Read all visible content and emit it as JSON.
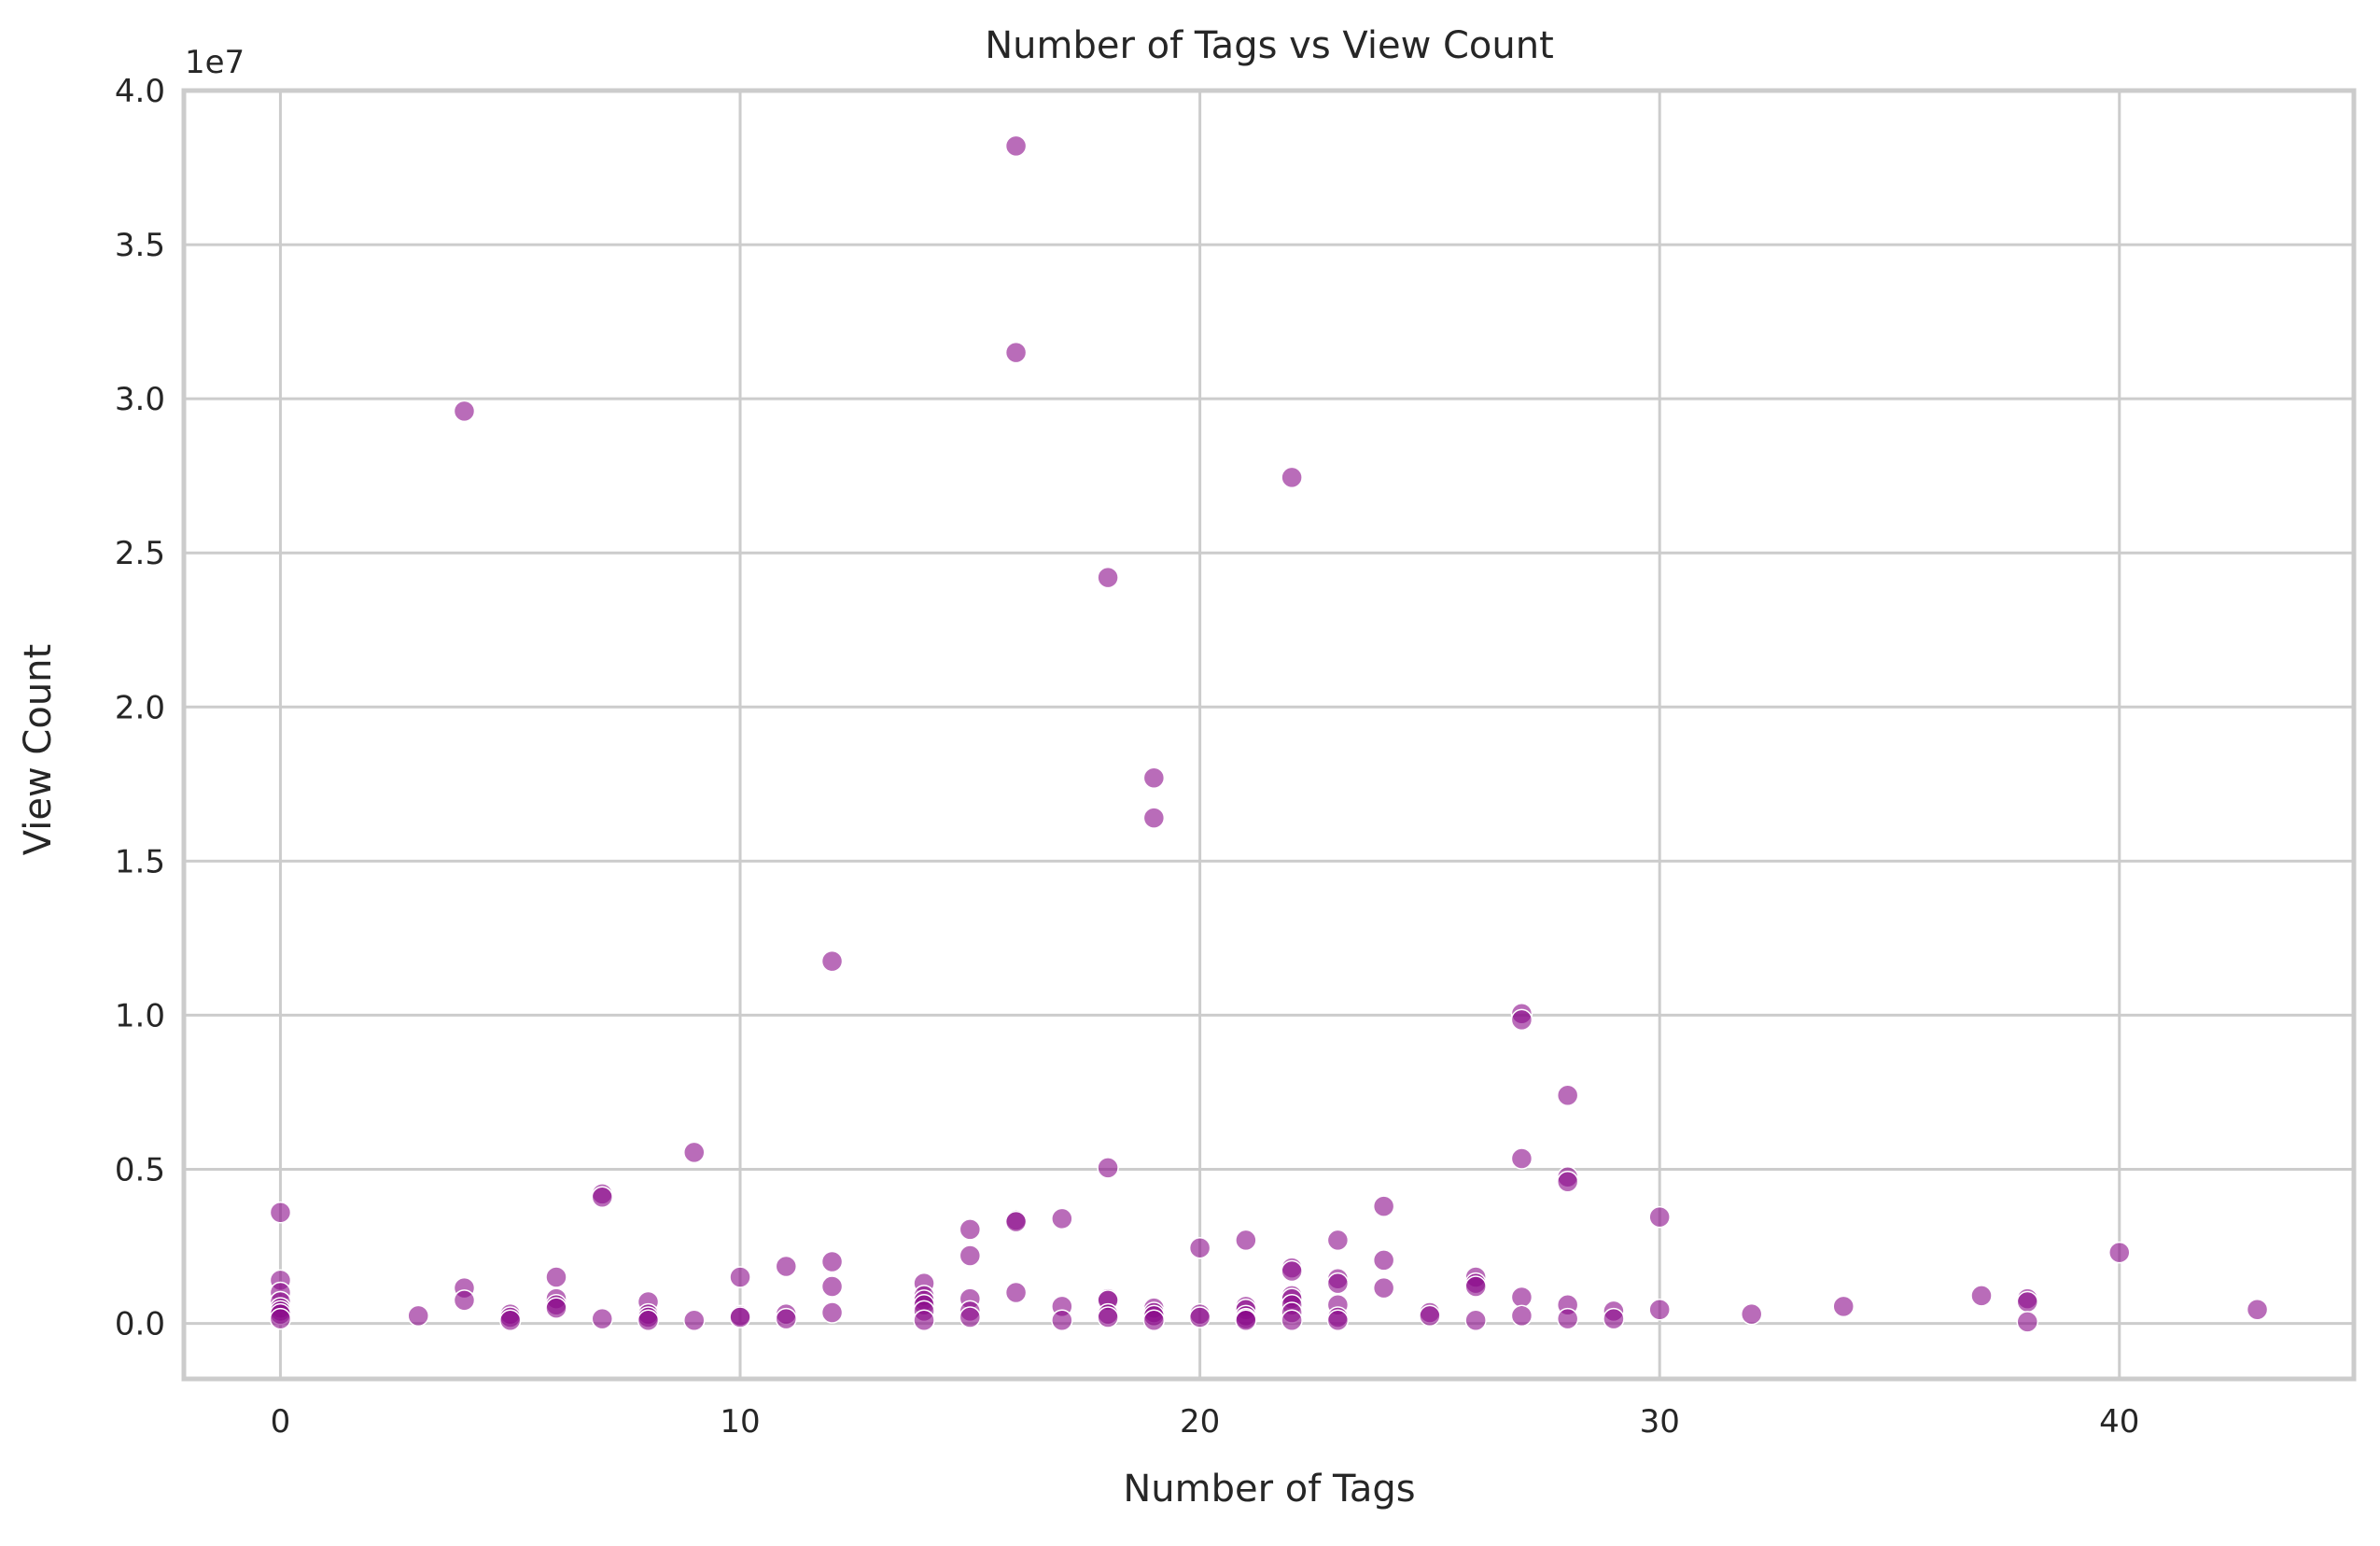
{
  "chart_data": {
    "type": "scatter",
    "title": "Number of Tags vs View Count",
    "xlabel": "Number of Tags",
    "ylabel": "View Count",
    "y_offset_text": "1e7",
    "xlim": [
      -2.1,
      45.1
    ],
    "ylim": [
      -1800000,
      40000000
    ],
    "x_ticks": [
      0,
      10,
      20,
      30,
      40
    ],
    "x_tick_labels": [
      "0",
      "10",
      "20",
      "30",
      "40"
    ],
    "y_ticks": [
      0,
      5000000,
      10000000,
      15000000,
      20000000,
      25000000,
      30000000,
      35000000,
      40000000
    ],
    "y_tick_labels": [
      "0.0",
      "0.5",
      "1.0",
      "1.5",
      "2.0",
      "2.5",
      "3.0",
      "3.5",
      "4.0"
    ],
    "grid": true,
    "marker_color": "#8b0a8b",
    "marker_alpha": 0.6,
    "marker_edge_color": "#ffffff",
    "points": [
      [
        0,
        3600000
      ],
      [
        0,
        1400000
      ],
      [
        0,
        1000000
      ],
      [
        0,
        700000
      ],
      [
        0,
        500000
      ],
      [
        0,
        400000
      ],
      [
        0,
        300000
      ],
      [
        0,
        150000
      ],
      [
        3,
        250000
      ],
      [
        4,
        29600000
      ],
      [
        4,
        1150000
      ],
      [
        4,
        750000
      ],
      [
        5,
        300000
      ],
      [
        5,
        200000
      ],
      [
        5,
        100000
      ],
      [
        6,
        1500000
      ],
      [
        6,
        800000
      ],
      [
        6,
        600000
      ],
      [
        6,
        500000
      ],
      [
        7,
        4200000
      ],
      [
        7,
        4100000
      ],
      [
        7,
        150000
      ],
      [
        8,
        700000
      ],
      [
        8,
        300000
      ],
      [
        8,
        200000
      ],
      [
        8,
        100000
      ],
      [
        9,
        5550000
      ],
      [
        9,
        100000
      ],
      [
        10,
        1500000
      ],
      [
        10,
        250000
      ],
      [
        10,
        200000
      ],
      [
        11,
        1850000
      ],
      [
        11,
        300000
      ],
      [
        11,
        150000
      ],
      [
        12,
        11750000
      ],
      [
        12,
        2000000
      ],
      [
        12,
        1200000
      ],
      [
        12,
        350000
      ],
      [
        14,
        1300000
      ],
      [
        14,
        900000
      ],
      [
        14,
        750000
      ],
      [
        14,
        600000
      ],
      [
        14,
        400000
      ],
      [
        14,
        100000
      ],
      [
        15,
        3050000
      ],
      [
        15,
        2200000
      ],
      [
        15,
        800000
      ],
      [
        15,
        400000
      ],
      [
        15,
        200000
      ],
      [
        16,
        38200000
      ],
      [
        16,
        31500000
      ],
      [
        16,
        3350000
      ],
      [
        16,
        3300000
      ],
      [
        16,
        1000000
      ],
      [
        17,
        3400000
      ],
      [
        17,
        550000
      ],
      [
        17,
        100000
      ],
      [
        18,
        24200000
      ],
      [
        18,
        5050000
      ],
      [
        18,
        800000
      ],
      [
        18,
        750000
      ],
      [
        18,
        300000
      ],
      [
        18,
        200000
      ],
      [
        19,
        17700000
      ],
      [
        19,
        16400000
      ],
      [
        19,
        500000
      ],
      [
        19,
        350000
      ],
      [
        19,
        250000
      ],
      [
        19,
        100000
      ],
      [
        20,
        2450000
      ],
      [
        20,
        300000
      ],
      [
        20,
        200000
      ],
      [
        21,
        2700000
      ],
      [
        21,
        550000
      ],
      [
        21,
        450000
      ],
      [
        21,
        250000
      ],
      [
        21,
        150000
      ],
      [
        21,
        100000
      ],
      [
        22,
        27450000
      ],
      [
        22,
        1800000
      ],
      [
        22,
        1700000
      ],
      [
        22,
        900000
      ],
      [
        22,
        800000
      ],
      [
        22,
        600000
      ],
      [
        22,
        350000
      ],
      [
        22,
        100000
      ],
      [
        23,
        2700000
      ],
      [
        23,
        1450000
      ],
      [
        23,
        1300000
      ],
      [
        23,
        600000
      ],
      [
        23,
        200000
      ],
      [
        23,
        100000
      ],
      [
        24,
        3800000
      ],
      [
        24,
        2050000
      ],
      [
        24,
        1150000
      ],
      [
        25,
        350000
      ],
      [
        25,
        250000
      ],
      [
        26,
        1500000
      ],
      [
        26,
        1300000
      ],
      [
        26,
        1200000
      ],
      [
        26,
        100000
      ],
      [
        27,
        10050000
      ],
      [
        27,
        9850000
      ],
      [
        27,
        5350000
      ],
      [
        27,
        850000
      ],
      [
        27,
        250000
      ],
      [
        28,
        7400000
      ],
      [
        28,
        4750000
      ],
      [
        28,
        4600000
      ],
      [
        28,
        600000
      ],
      [
        28,
        150000
      ],
      [
        29,
        400000
      ],
      [
        29,
        150000
      ],
      [
        30,
        3450000
      ],
      [
        30,
        450000
      ],
      [
        32,
        300000
      ],
      [
        34,
        550000
      ],
      [
        37,
        900000
      ],
      [
        38,
        800000
      ],
      [
        38,
        700000
      ],
      [
        38,
        50000
      ],
      [
        40,
        2300000
      ],
      [
        43,
        450000
      ]
    ]
  }
}
